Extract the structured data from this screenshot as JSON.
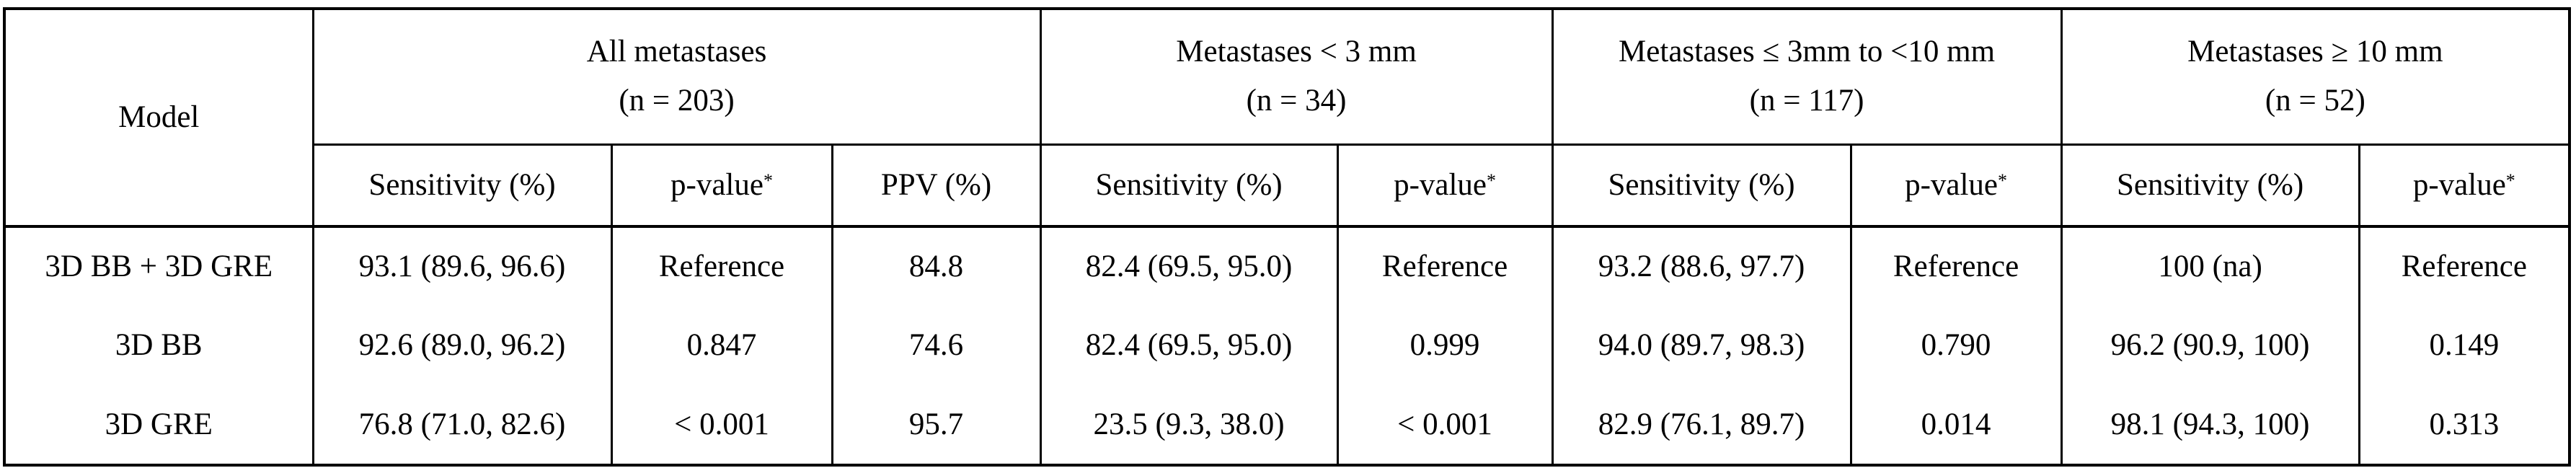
{
  "table": {
    "model_header": "Model",
    "groups": [
      {
        "title": "All metastases",
        "n": "(n = 203)"
      },
      {
        "title": "Metastases < 3 mm",
        "n": "(n = 34)"
      },
      {
        "title": "Metastases ≤ 3mm to <10 mm",
        "n": "(n = 117)"
      },
      {
        "title": "Metastases ≥ 10 mm",
        "n": "(n = 52)"
      }
    ],
    "sub_headers": {
      "sensitivity": "Sensitivity (%)",
      "pvalue": "p-value",
      "pvalue_mark": "*",
      "ppv": "PPV (%)"
    },
    "rows": [
      {
        "model": "3D BB + 3D GRE",
        "all_sens": "93.1 (89.6, 96.6)",
        "all_p": "Reference",
        "all_ppv": "84.8",
        "lt3_sens": "82.4 (69.5, 95.0)",
        "lt3_p": "Reference",
        "mid_sens": "93.2 (88.6, 97.7)",
        "mid_p": "Reference",
        "ge10_sens": "100 (na)",
        "ge10_p": "Reference"
      },
      {
        "model": "3D BB",
        "all_sens": "92.6 (89.0, 96.2)",
        "all_p": "0.847",
        "all_ppv": "74.6",
        "lt3_sens": "82.4 (69.5, 95.0)",
        "lt3_p": "0.999",
        "mid_sens": "94.0 (89.7, 98.3)",
        "mid_p": "0.790",
        "ge10_sens": "96.2 (90.9, 100)",
        "ge10_p": "0.149"
      },
      {
        "model": "3D GRE",
        "all_sens": "76.8 (71.0, 82.6)",
        "all_p": "< 0.001",
        "all_ppv": "95.7",
        "lt3_sens": "23.5 (9.3, 38.0)",
        "lt3_p": "< 0.001",
        "mid_sens": "82.9 (76.1, 89.7)",
        "mid_p": "0.014",
        "ge10_sens": "98.1 (94.3, 100)",
        "ge10_p": "0.313"
      }
    ]
  }
}
